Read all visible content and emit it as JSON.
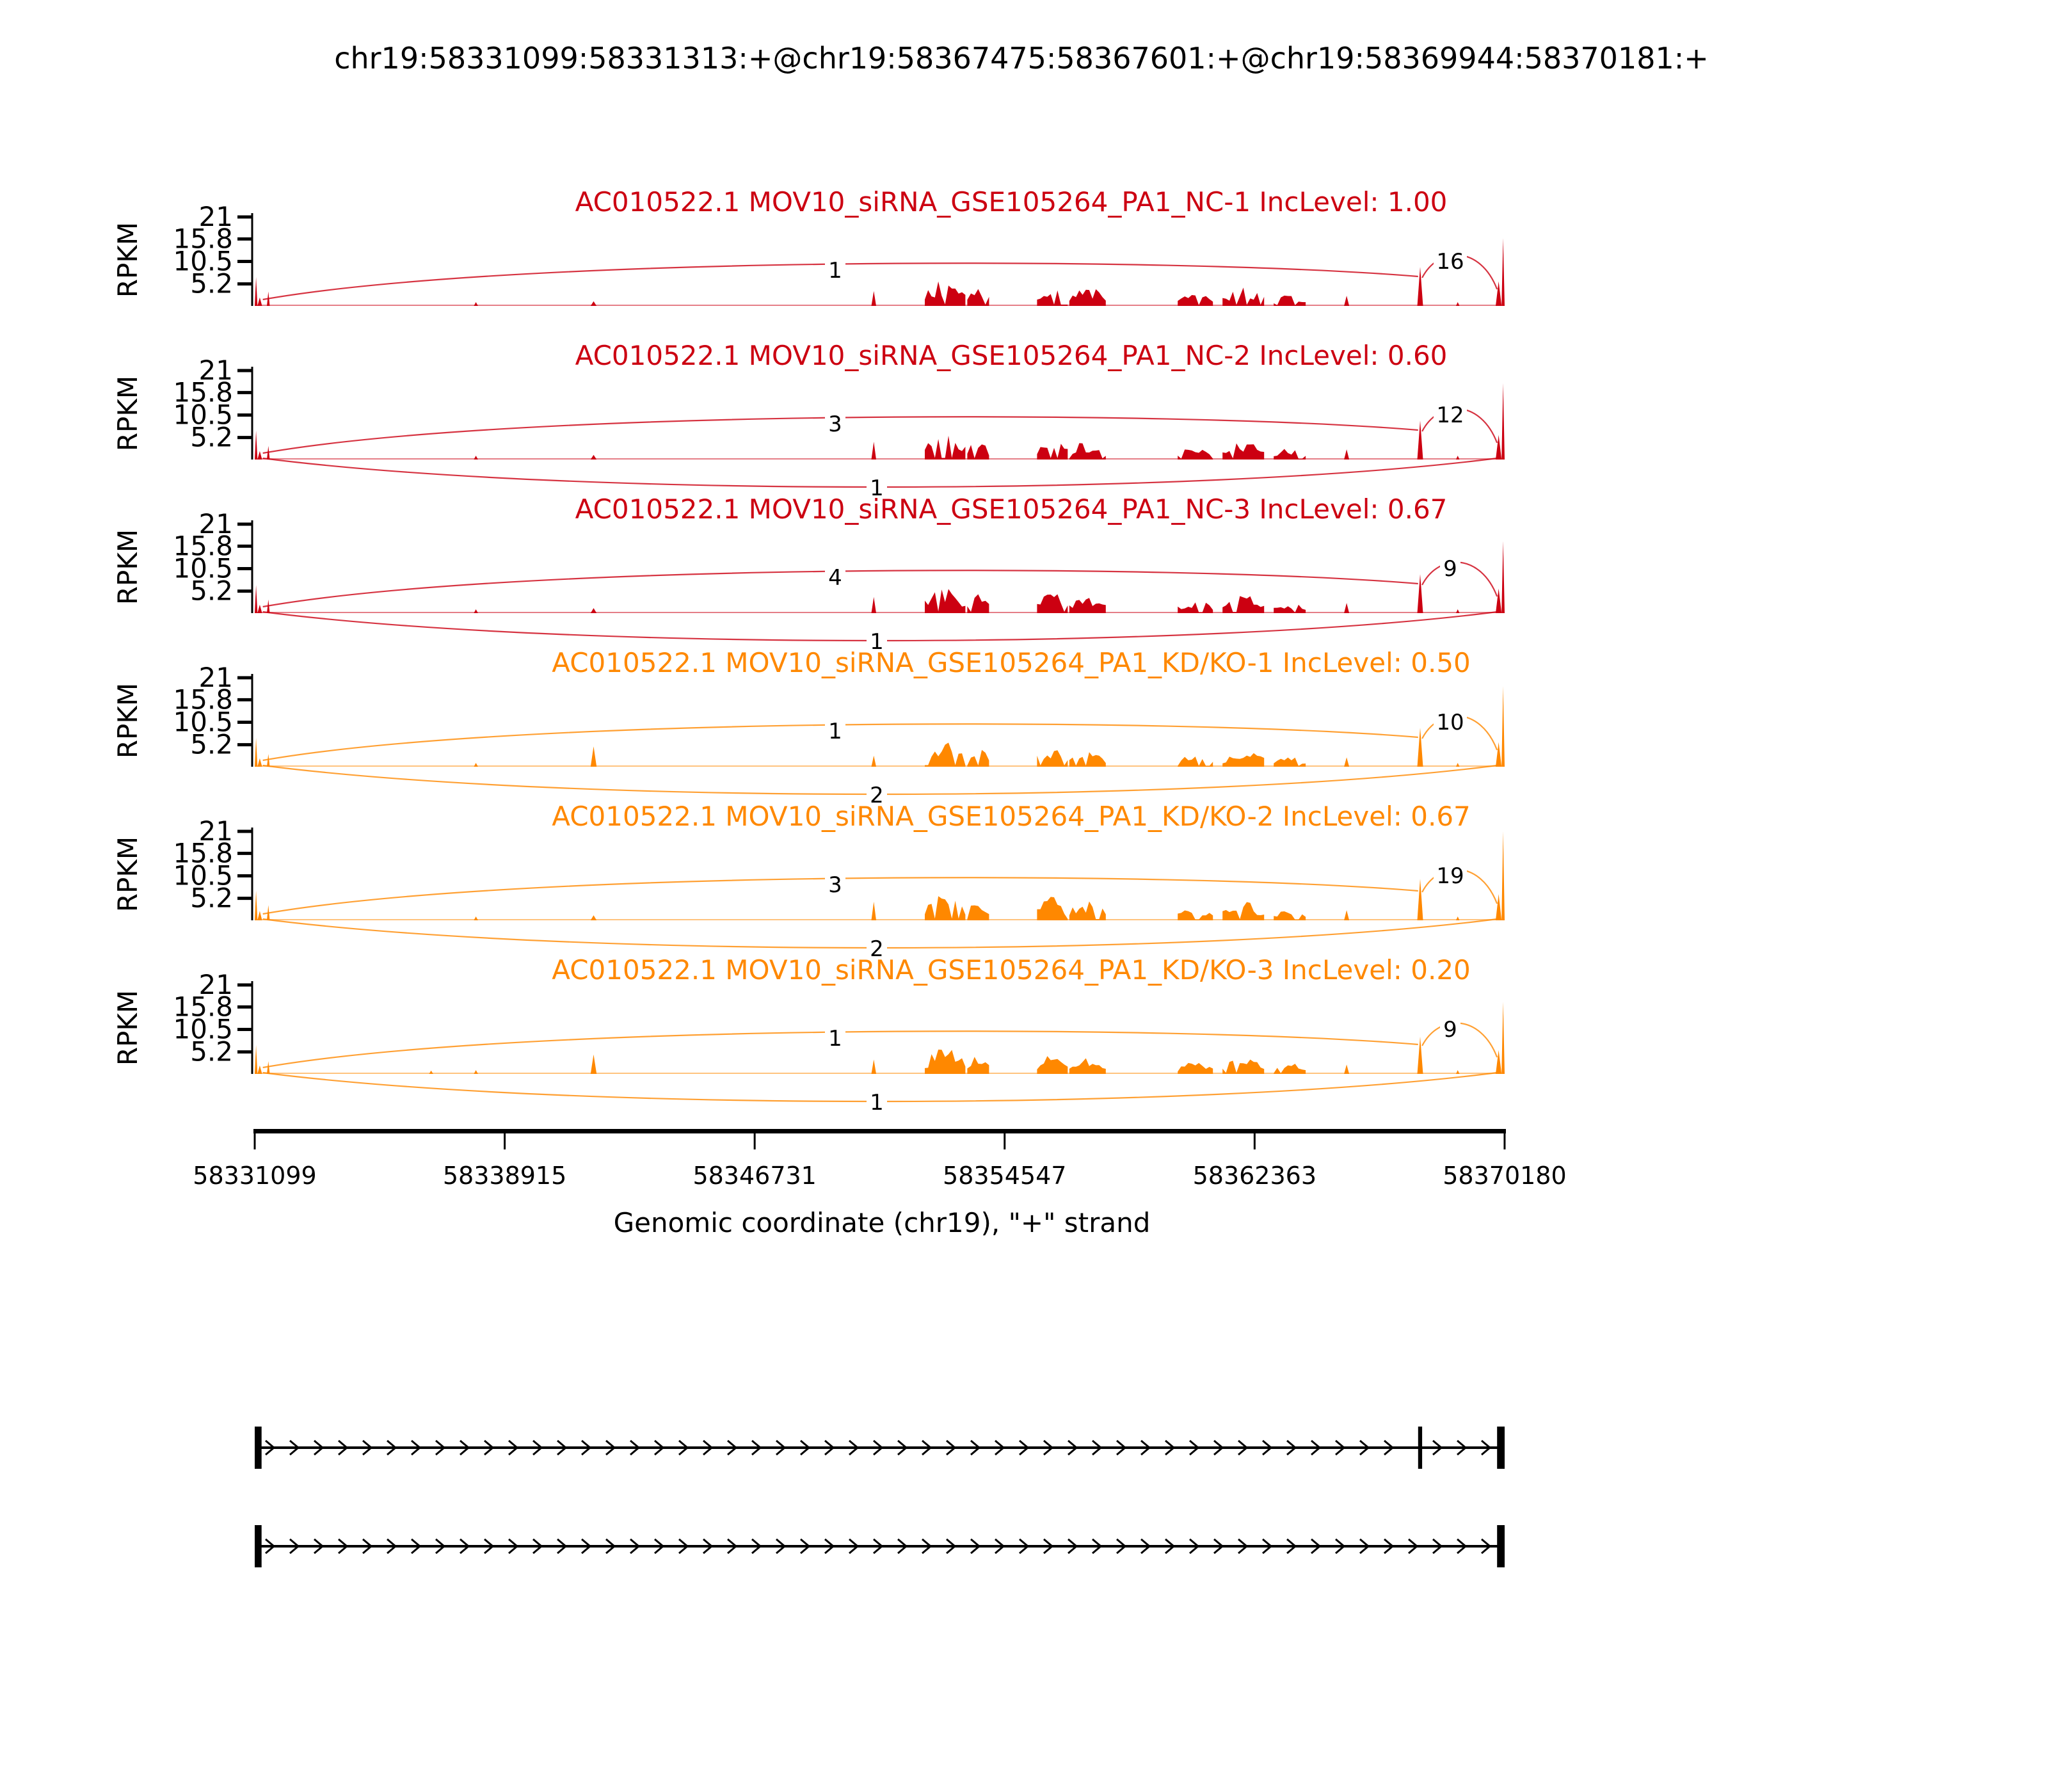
{
  "title": "chr19:58331099:58331313:+@chr19:58367475:58367601:+@chr19:58369944:58370181:+",
  "chart_data": {
    "type": "area",
    "subtype": "sashimi-plot",
    "x_domain": [
      58331099,
      58370181
    ],
    "x_axis": {
      "ticks": [
        58331099,
        58338915,
        58346731,
        58354547,
        58362363,
        58370180
      ],
      "label": "Genomic coordinate (chr19), \"+\" strand"
    },
    "y_axis": {
      "label": "RPKM",
      "ticks": [
        5.2,
        10.5,
        15.8,
        21
      ],
      "max": 21
    },
    "colors": {
      "group1": "#CC0011",
      "group2": "#FF8800"
    },
    "tracks": [
      {
        "sample": "AC010522.1 MOV10_siRNA_GSE105264_PA1_NC-1",
        "inc_level": "1.00",
        "color": "#CC0011",
        "junctions": [
          {
            "from": 58331313,
            "to": 58367475,
            "count": 1,
            "position": "top"
          },
          {
            "from": 58367601,
            "to": 58369944,
            "count": 16,
            "position": "top-right"
          }
        ],
        "coverage": [
          [
            58331099,
            58331185,
            6.8
          ],
          [
            58331185,
            58331330,
            2.0
          ],
          [
            58331480,
            58331570,
            3.4
          ],
          [
            58337950,
            58338080,
            0.9
          ],
          [
            58341600,
            58341790,
            1.1
          ],
          [
            58350380,
            58350530,
            3.5
          ],
          [
            58352050,
            58353320,
            6.3
          ],
          [
            58353380,
            58354060,
            5.0
          ],
          [
            58355560,
            58356520,
            5.4
          ],
          [
            58356570,
            58357710,
            4.6
          ],
          [
            58359960,
            58361060,
            3.2
          ],
          [
            58361360,
            58362660,
            4.4
          ],
          [
            58362960,
            58363960,
            2.8
          ],
          [
            58365160,
            58365320,
            2.4
          ],
          [
            58367450,
            58367630,
            9.2
          ],
          [
            58368660,
            58368770,
            0.9
          ],
          [
            58369900,
            58370085,
            5.8
          ],
          [
            58370085,
            58370181,
            16.0
          ]
        ]
      },
      {
        "sample": "AC010522.1 MOV10_siRNA_GSE105264_PA1_NC-2",
        "inc_level": "0.60",
        "color": "#CC0011",
        "junctions": [
          {
            "from": 58331313,
            "to": 58367475,
            "count": 3,
            "position": "top"
          },
          {
            "from": 58367601,
            "to": 58369944,
            "count": 12,
            "position": "top-right"
          },
          {
            "from": 58331313,
            "to": 58369944,
            "count": 1,
            "position": "bottom"
          }
        ],
        "coverage": [
          [
            58331099,
            58331185,
            6.8
          ],
          [
            58331185,
            58331330,
            2.0
          ],
          [
            58331480,
            58331570,
            3.2
          ],
          [
            58337950,
            58338080,
            0.9
          ],
          [
            58341600,
            58341790,
            1.1
          ],
          [
            58350380,
            58350530,
            4.2
          ],
          [
            58352050,
            58353320,
            6.3
          ],
          [
            58353380,
            58354060,
            5.0
          ],
          [
            58355560,
            58356520,
            5.4
          ],
          [
            58356570,
            58357710,
            4.6
          ],
          [
            58359960,
            58361060,
            3.2
          ],
          [
            58361360,
            58362660,
            4.4
          ],
          [
            58362960,
            58363960,
            2.8
          ],
          [
            58365160,
            58365320,
            2.4
          ],
          [
            58367450,
            58367630,
            9.2
          ],
          [
            58368660,
            58368770,
            0.9
          ],
          [
            58369900,
            58370085,
            5.8
          ],
          [
            58370085,
            58370181,
            18.0
          ]
        ]
      },
      {
        "sample": "AC010522.1 MOV10_siRNA_GSE105264_PA1_NC-3",
        "inc_level": "0.67",
        "color": "#CC0011",
        "junctions": [
          {
            "from": 58331313,
            "to": 58367475,
            "count": 4,
            "position": "top"
          },
          {
            "from": 58367601,
            "to": 58369944,
            "count": 9,
            "position": "top-right"
          },
          {
            "from": 58331313,
            "to": 58369944,
            "count": 1,
            "position": "bottom"
          }
        ],
        "coverage": [
          [
            58331099,
            58331185,
            6.6
          ],
          [
            58331185,
            58331330,
            2.0
          ],
          [
            58331480,
            58331570,
            3.2
          ],
          [
            58337950,
            58338080,
            0.9
          ],
          [
            58341600,
            58341790,
            1.2
          ],
          [
            58350380,
            58350530,
            3.8
          ],
          [
            58352050,
            58353320,
            6.3
          ],
          [
            58353380,
            58354060,
            5.0
          ],
          [
            58355560,
            58356520,
            5.4
          ],
          [
            58356570,
            58357710,
            4.6
          ],
          [
            58359960,
            58361060,
            3.2
          ],
          [
            58361360,
            58362660,
            4.4
          ],
          [
            58362960,
            58363960,
            2.8
          ],
          [
            58365160,
            58365320,
            2.4
          ],
          [
            58367450,
            58367630,
            9.2
          ],
          [
            58368660,
            58368770,
            0.9
          ],
          [
            58369900,
            58370085,
            5.8
          ],
          [
            58370085,
            58370181,
            17.0
          ]
        ]
      },
      {
        "sample": "AC010522.1 MOV10_siRNA_GSE105264_PA1_KD/KO-1",
        "inc_level": "0.50",
        "color": "#FF8800",
        "junctions": [
          {
            "from": 58331313,
            "to": 58367475,
            "count": 1,
            "position": "top"
          },
          {
            "from": 58367601,
            "to": 58369944,
            "count": 10,
            "position": "top-right"
          },
          {
            "from": 58331313,
            "to": 58369944,
            "count": 2,
            "position": "bottom"
          }
        ],
        "coverage": [
          [
            58331099,
            58331185,
            6.8
          ],
          [
            58331185,
            58331330,
            2.0
          ],
          [
            58331480,
            58331570,
            3.0
          ],
          [
            58337950,
            58338080,
            0.9
          ],
          [
            58341600,
            58341790,
            4.8
          ],
          [
            58350380,
            58350530,
            2.6
          ],
          [
            58352050,
            58353320,
            6.3
          ],
          [
            58353380,
            58354060,
            5.0
          ],
          [
            58355560,
            58356520,
            5.4
          ],
          [
            58356570,
            58357710,
            4.6
          ],
          [
            58359960,
            58361060,
            3.0
          ],
          [
            58361360,
            58362660,
            4.2
          ],
          [
            58362960,
            58363960,
            2.6
          ],
          [
            58365160,
            58365320,
            2.2
          ],
          [
            58367450,
            58367630,
            9.2
          ],
          [
            58368660,
            58368770,
            0.9
          ],
          [
            58369900,
            58370085,
            5.8
          ],
          [
            58370085,
            58370181,
            19.0
          ]
        ]
      },
      {
        "sample": "AC010522.1 MOV10_siRNA_GSE105264_PA1_KD/KO-2",
        "inc_level": "0.67",
        "color": "#FF8800",
        "junctions": [
          {
            "from": 58331313,
            "to": 58367475,
            "count": 3,
            "position": "top"
          },
          {
            "from": 58367601,
            "to": 58369944,
            "count": 19,
            "position": "top-right"
          },
          {
            "from": 58331313,
            "to": 58369944,
            "count": 2,
            "position": "bottom"
          }
        ],
        "coverage": [
          [
            58331099,
            58331185,
            7.0
          ],
          [
            58331185,
            58331330,
            2.2
          ],
          [
            58331480,
            58331570,
            3.6
          ],
          [
            58337950,
            58338080,
            0.9
          ],
          [
            58341600,
            58341790,
            1.2
          ],
          [
            58350380,
            58350530,
            4.4
          ],
          [
            58352050,
            58353320,
            6.5
          ],
          [
            58353380,
            58354060,
            5.2
          ],
          [
            58355560,
            58356520,
            5.6
          ],
          [
            58356570,
            58357710,
            4.8
          ],
          [
            58359960,
            58361060,
            3.2
          ],
          [
            58361360,
            58362660,
            4.4
          ],
          [
            58362960,
            58363960,
            2.8
          ],
          [
            58365160,
            58365320,
            2.4
          ],
          [
            58367450,
            58367630,
            9.8
          ],
          [
            58368660,
            58368770,
            0.9
          ],
          [
            58369900,
            58370085,
            6.2
          ],
          [
            58370085,
            58370181,
            21.0
          ]
        ]
      },
      {
        "sample": "AC010522.1 MOV10_siRNA_GSE105264_PA1_KD/KO-3",
        "inc_level": "0.20",
        "color": "#FF8800",
        "junctions": [
          {
            "from": 58331313,
            "to": 58367475,
            "count": 1,
            "position": "top"
          },
          {
            "from": 58367601,
            "to": 58369944,
            "count": 9,
            "position": "top-right"
          },
          {
            "from": 58331313,
            "to": 58369944,
            "count": 1,
            "position": "bottom"
          }
        ],
        "coverage": [
          [
            58331099,
            58331185,
            6.8
          ],
          [
            58331185,
            58331330,
            2.0
          ],
          [
            58331480,
            58331570,
            3.0
          ],
          [
            58336550,
            58336680,
            0.8
          ],
          [
            58337950,
            58338080,
            0.9
          ],
          [
            58341600,
            58341790,
            4.6
          ],
          [
            58350380,
            58350530,
            3.4
          ],
          [
            58352050,
            58353320,
            6.3
          ],
          [
            58353380,
            58354060,
            5.0
          ],
          [
            58355560,
            58356520,
            5.4
          ],
          [
            58356570,
            58357710,
            4.6
          ],
          [
            58359960,
            58361060,
            3.0
          ],
          [
            58361360,
            58362660,
            4.2
          ],
          [
            58362960,
            58363960,
            2.8
          ],
          [
            58365160,
            58365320,
            2.2
          ],
          [
            58367450,
            58367630,
            8.8
          ],
          [
            58368660,
            58368770,
            0.9
          ],
          [
            58369900,
            58370085,
            5.6
          ],
          [
            58370085,
            58370181,
            17.0
          ]
        ]
      }
    ],
    "transcripts": [
      {
        "exons": [
          [
            58331099,
            58331313
          ],
          [
            58367475,
            58367601
          ],
          [
            58369944,
            58370181
          ]
        ],
        "span": [
          58331099,
          58370181
        ],
        "strand": "+"
      },
      {
        "exons": [
          [
            58331099,
            58331313
          ],
          [
            58369944,
            58370181
          ]
        ],
        "span": [
          58331099,
          58370181
        ],
        "strand": "+"
      }
    ]
  }
}
